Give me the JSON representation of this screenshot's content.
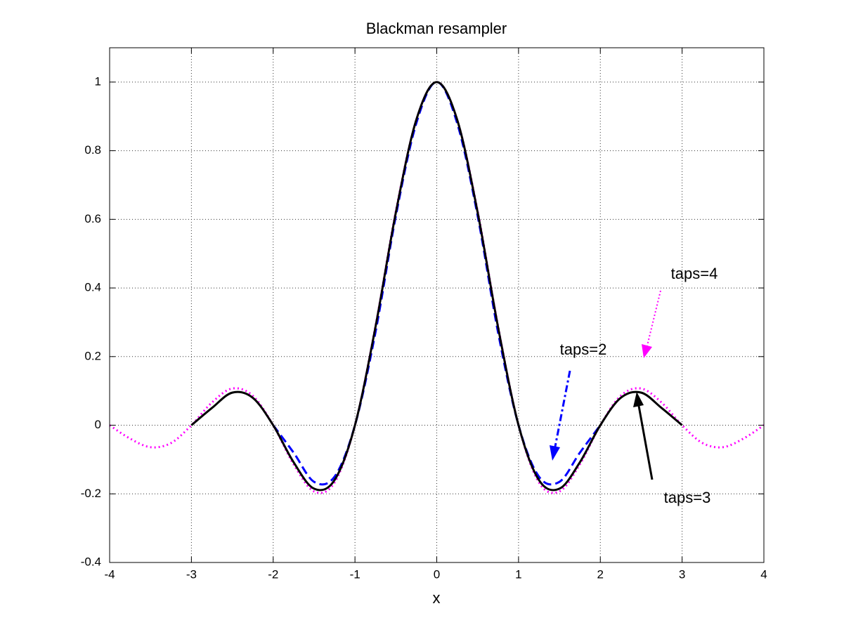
{
  "chart_data": {
    "type": "line",
    "title": "Blackman resampler",
    "x_label": "x",
    "x": [
      -4,
      -3.75,
      -3.5,
      -3.25,
      -3,
      -2.75,
      -2.5,
      -2.25,
      -2,
      -1.75,
      -1.5,
      -1.25,
      -1,
      -0.75,
      -0.5,
      -0.25,
      0,
      0.25,
      0.5,
      0.75,
      1,
      1.25,
      1.5,
      1.75,
      2,
      2.25,
      2.5,
      2.75,
      3,
      3.25,
      3.5,
      3.75,
      4
    ],
    "series": [
      {
        "color": "#ff00ff",
        "line_style": "dotted",
        "values": [
          0,
          -0.039,
          -0.064,
          -0.052,
          0,
          0.066,
          0.107,
          0.086,
          0,
          -0.114,
          -0.193,
          -0.167,
          0,
          0.288,
          0.624,
          0.89,
          1,
          0.89,
          0.624,
          0.288,
          0,
          -0.167,
          -0.193,
          -0.114,
          0,
          0.086,
          0.107,
          0.066,
          0,
          -0.052,
          -0.064,
          -0.039,
          0
        ]
      },
      {
        "color": "#0000ff",
        "line_style": "dashed",
        "values": [
          null,
          null,
          null,
          null,
          null,
          null,
          null,
          null,
          0,
          -0.08,
          -0.165,
          -0.15,
          0,
          0.27,
          0.61,
          0.88,
          1,
          0.88,
          0.61,
          0.27,
          0,
          -0.15,
          -0.165,
          -0.08,
          0,
          null,
          null,
          null,
          null,
          null,
          null,
          null,
          null
        ]
      },
      {
        "color": "#000000",
        "line_style": "solid",
        "values": [
          null,
          null,
          null,
          null,
          0,
          0.05,
          0.095,
          0.08,
          0,
          -0.108,
          -0.185,
          -0.16,
          0,
          0.285,
          0.62,
          0.89,
          1,
          0.89,
          0.62,
          0.285,
          0,
          -0.16,
          -0.185,
          -0.108,
          0,
          0.08,
          0.095,
          0.05,
          0,
          null,
          null,
          null,
          null
        ]
      }
    ],
    "annotations": [
      {
        "text": "taps=4",
        "color": "#ff00ff"
      },
      {
        "text": "taps=2",
        "color": "#0000ff"
      },
      {
        "text": "taps=3",
        "color": "#000000"
      }
    ],
    "xlim": [
      -4,
      4
    ],
    "xticks": [
      -4,
      -3,
      -2,
      -1,
      0,
      1,
      2,
      3,
      4
    ],
    "ylim": [
      -0.4,
      1.1
    ],
    "yticks": [
      -0.4,
      -0.2,
      0,
      0.2,
      0.4,
      0.6,
      0.8,
      1
    ],
    "grid": true
  }
}
